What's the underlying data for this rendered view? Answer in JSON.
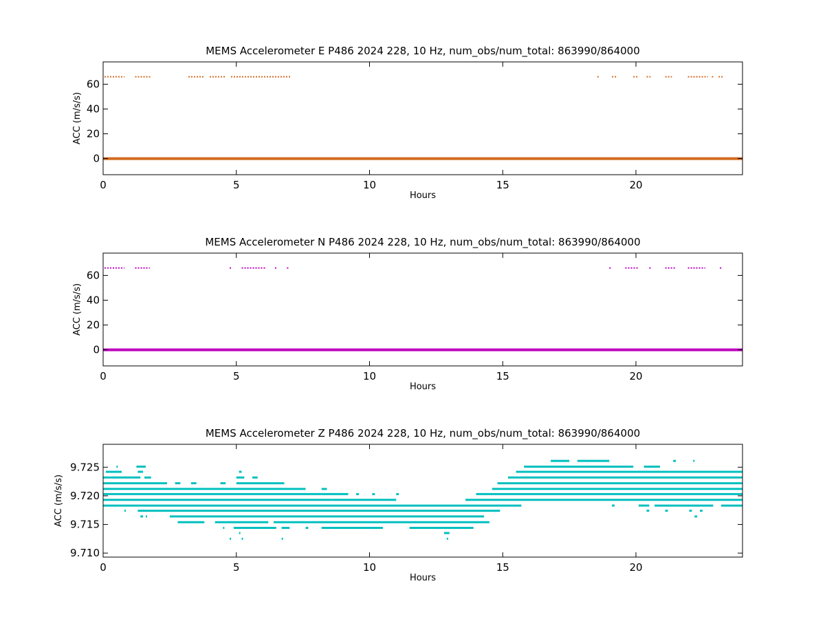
{
  "chart_data": [
    {
      "type": "scatter",
      "title": "MEMS Accelerometer E P486 2024 228, 10 Hz, num_obs/num_total: 863990/864000",
      "xlabel": "Hours",
      "ylabel": "ACC (m/s/s)",
      "xlim": [
        0,
        24
      ],
      "ylim": [
        -13,
        78
      ],
      "xticks": [
        0,
        5,
        10,
        15,
        20
      ],
      "xtick_labels": [
        "0",
        "5",
        "10",
        "15",
        "20"
      ],
      "yticks": [
        0,
        20,
        40,
        60
      ],
      "ytick_labels": [
        "0",
        "20",
        "40",
        "60"
      ],
      "grid": false,
      "legend": "none",
      "color": "#d2691e",
      "series": [
        {
          "baseline": {
            "x_range": [
              0,
              24
            ],
            "y": 0
          },
          "outliers": {
            "y": 66,
            "x_ranges": [
              [
                0.05,
                0.8
              ],
              [
                1.2,
                1.8
              ],
              [
                3.2,
                3.8
              ],
              [
                4.0,
                4.6
              ],
              [
                4.8,
                7.05
              ],
              [
                18.55,
                18.6
              ],
              [
                19.1,
                19.3
              ],
              [
                19.9,
                20.1
              ],
              [
                20.4,
                20.55
              ],
              [
                21.1,
                21.35
              ],
              [
                21.95,
                22.7
              ],
              [
                22.85,
                22.95
              ],
              [
                23.1,
                23.3
              ]
            ]
          }
        }
      ]
    },
    {
      "type": "scatter",
      "title": "MEMS Accelerometer N P486 2024 228, 10 Hz, num_obs/num_total: 863990/864000",
      "xlabel": "Hours",
      "ylabel": "ACC (m/s/s)",
      "xlim": [
        0,
        24
      ],
      "ylim": [
        -13,
        78
      ],
      "xticks": [
        0,
        5,
        10,
        15,
        20
      ],
      "xtick_labels": [
        "0",
        "5",
        "10",
        "15",
        "20"
      ],
      "yticks": [
        0,
        20,
        40,
        60
      ],
      "ytick_labels": [
        "0",
        "20",
        "40",
        "60"
      ],
      "grid": false,
      "legend": "none",
      "color": "#bf00bf",
      "series": [
        {
          "baseline": {
            "x_range": [
              0,
              24
            ],
            "y": 0
          },
          "outliers": {
            "y": 66,
            "x_ranges": [
              [
                0.05,
                0.8
              ],
              [
                1.2,
                1.75
              ],
              [
                4.75,
                4.8
              ],
              [
                5.2,
                6.1
              ],
              [
                6.45,
                6.5
              ],
              [
                6.9,
                6.95
              ],
              [
                19.0,
                19.05
              ],
              [
                19.6,
                20.1
              ],
              [
                20.5,
                20.6
              ],
              [
                21.1,
                21.5
              ],
              [
                21.95,
                22.6
              ],
              [
                23.15,
                23.2
              ]
            ]
          }
        }
      ]
    },
    {
      "type": "scatter",
      "title": "MEMS Accelerometer Z P486 2024 228, 10 Hz, num_obs/num_total: 863990/864000",
      "xlabel": "Hours",
      "ylabel": "ACC (m/s/s)",
      "xlim": [
        0,
        24
      ],
      "ylim": [
        9.7093,
        9.729
      ],
      "xticks": [
        0,
        5,
        10,
        15,
        20
      ],
      "xtick_labels": [
        "0",
        "5",
        "10",
        "15",
        "20"
      ],
      "yticks": [
        9.71,
        9.715,
        9.72,
        9.725
      ],
      "ytick_labels": [
        "9.710",
        "9.715",
        "9.720",
        "9.725"
      ],
      "grid": false,
      "legend": "none",
      "color": "#00bfbf",
      "levels": [
        {
          "y": 9.7261,
          "x_ranges": [
            [
              16.8,
              17.5
            ],
            [
              17.8,
              19.0
            ],
            [
              21.4,
              21.5
            ],
            [
              22.15,
              22.2
            ]
          ]
        },
        {
          "y": 9.7251,
          "x_ranges": [
            [
              0.5,
              0.55
            ],
            [
              1.25,
              1.6
            ],
            [
              15.8,
              19.9
            ],
            [
              20.3,
              20.9
            ]
          ]
        },
        {
          "y": 9.7242,
          "x_ranges": [
            [
              0.1,
              0.7
            ],
            [
              1.3,
              1.5
            ],
            [
              5.1,
              5.2
            ],
            [
              15.5,
              24.0
            ]
          ]
        },
        {
          "y": 9.7232,
          "x_ranges": [
            [
              0.0,
              1.4
            ],
            [
              1.55,
              1.8
            ],
            [
              5.0,
              5.3
            ],
            [
              5.6,
              5.8
            ],
            [
              15.2,
              24.0
            ]
          ]
        },
        {
          "y": 9.7222,
          "x_ranges": [
            [
              0.0,
              2.4
            ],
            [
              2.7,
              2.9
            ],
            [
              3.3,
              3.5
            ],
            [
              4.4,
              4.6
            ],
            [
              5.0,
              6.8
            ],
            [
              14.8,
              24.0
            ]
          ]
        },
        {
          "y": 9.7212,
          "x_ranges": [
            [
              0.0,
              7.6
            ],
            [
              8.2,
              8.4
            ],
            [
              14.6,
              24.0
            ]
          ]
        },
        {
          "y": 9.7203,
          "x_ranges": [
            [
              0.0,
              8.2
            ],
            [
              8.2,
              9.2
            ],
            [
              9.5,
              9.6
            ],
            [
              10.1,
              10.2
            ],
            [
              11.0,
              11.1
            ],
            [
              14.0,
              24.0
            ]
          ]
        },
        {
          "y": 9.7193,
          "x_ranges": [
            [
              0.0,
              8.6
            ],
            [
              8.6,
              11.0
            ],
            [
              13.6,
              24.0
            ]
          ]
        },
        {
          "y": 9.7183,
          "x_ranges": [
            [
              0.0,
              15.7
            ],
            [
              19.1,
              19.2
            ],
            [
              20.1,
              20.5
            ],
            [
              20.7,
              22.9
            ],
            [
              23.2,
              24.0
            ]
          ]
        },
        {
          "y": 9.7174,
          "x_ranges": [
            [
              0.8,
              0.85
            ],
            [
              1.3,
              14.9
            ],
            [
              20.4,
              20.5
            ],
            [
              21.1,
              21.2
            ],
            [
              22.0,
              22.1
            ],
            [
              22.4,
              22.5
            ]
          ]
        },
        {
          "y": 9.7164,
          "x_ranges": [
            [
              1.4,
              1.5
            ],
            [
              1.6,
              1.65
            ],
            [
              2.5,
              14.3
            ],
            [
              22.2,
              22.3
            ]
          ]
        },
        {
          "y": 9.7154,
          "x_ranges": [
            [
              2.8,
              3.8
            ],
            [
              4.2,
              6.2
            ],
            [
              6.4,
              14.5
            ]
          ]
        },
        {
          "y": 9.7144,
          "x_ranges": [
            [
              4.5,
              4.55
            ],
            [
              4.9,
              6.5
            ],
            [
              6.7,
              7.0
            ],
            [
              7.6,
              7.7
            ],
            [
              8.2,
              10.5
            ],
            [
              11.5,
              13.9
            ]
          ]
        },
        {
          "y": 9.7135,
          "x_ranges": [
            [
              5.1,
              5.15
            ],
            [
              12.8,
              13.0
            ]
          ]
        },
        {
          "y": 9.7125,
          "x_ranges": [
            [
              4.75,
              4.8
            ],
            [
              5.2,
              5.25
            ],
            [
              6.7,
              6.75
            ],
            [
              12.9,
              12.95
            ]
          ]
        }
      ]
    }
  ]
}
